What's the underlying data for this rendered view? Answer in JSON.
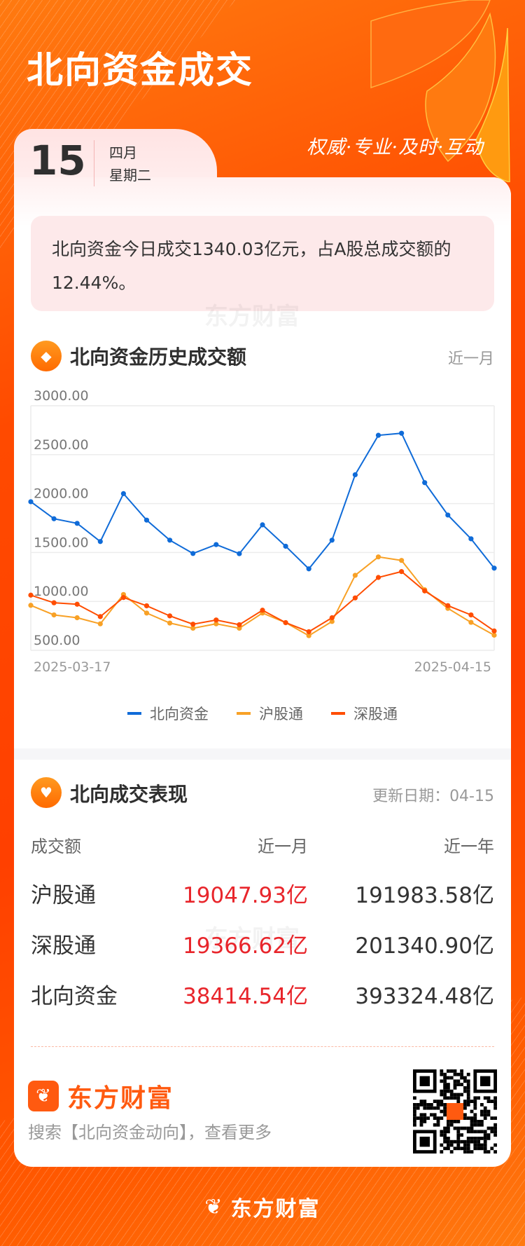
{
  "header": {
    "title": "北向资金成交",
    "slogan": "权威·专业·及时·互动"
  },
  "date": {
    "day": "15",
    "month": "四月",
    "weekday": "星期二"
  },
  "summary": "北向资金今日成交1340.03亿元，占A股总成交额的12.44%。",
  "watermark": "东方财富",
  "history_section": {
    "icon": "coin-icon",
    "title": "北向资金历史成交额",
    "range": "近一月"
  },
  "chart_data": {
    "type": "line",
    "title": "",
    "xlabel": "",
    "ylabel": "",
    "ylim": [
      500,
      3000
    ],
    "yticks": [
      "3000.00",
      "2500.00",
      "2000.00",
      "1500.00",
      "1000.00",
      "500.00"
    ],
    "grid": true,
    "legend": "bottom",
    "x": [
      "2025-03-17",
      "2025-03-18",
      "2025-03-19",
      "2025-03-20",
      "2025-03-21",
      "2025-03-24",
      "2025-03-25",
      "2025-03-26",
      "2025-03-27",
      "2025-03-28",
      "2025-03-31",
      "2025-04-01",
      "2025-04-02",
      "2025-04-03",
      "2025-04-07",
      "2025-04-08",
      "2025-04-09",
      "2025-04-10",
      "2025-04-11",
      "2025-04-14",
      "2025-04-15"
    ],
    "xtick_labels": [
      "2025-03-17",
      "2025-04-15"
    ],
    "series": [
      {
        "name": "北向资金",
        "color": "#0f6bd8",
        "values": [
          2019,
          1845,
          1798,
          1612,
          2102,
          1831,
          1626,
          1490,
          1581,
          1488,
          1783,
          1564,
          1333,
          1626,
          2295,
          2698,
          2719,
          2214,
          1883,
          1640,
          1340.03
        ]
      },
      {
        "name": "沪股通",
        "color": "#f8a126",
        "values": [
          960,
          862,
          833,
          771,
          1071,
          881,
          779,
          726,
          771,
          726,
          881,
          783,
          650,
          795,
          1267,
          1455,
          1419,
          1119,
          929,
          786,
          655
        ]
      },
      {
        "name": "深股通",
        "color": "#ff4d00",
        "values": [
          1064,
          986,
          971,
          845,
          1040,
          955,
          852,
          767,
          810,
          762,
          910,
          783,
          690,
          833,
          1036,
          1245,
          1305,
          1107,
          957,
          862,
          698
        ]
      }
    ]
  },
  "performance_section": {
    "icon": "handshake-icon",
    "title": "北向成交表现",
    "update_label": "更新日期：04-15",
    "columns": [
      "成交额",
      "近一月",
      "近一年"
    ],
    "rows": [
      {
        "label": "沪股通",
        "month": "19047.93亿",
        "year": "191983.58亿"
      },
      {
        "label": "深股通",
        "month": "19366.62亿",
        "year": "201340.90亿"
      },
      {
        "label": "北向资金",
        "month": "38414.54亿",
        "year": "393324.48亿"
      }
    ]
  },
  "footer": {
    "brand": "东方财富",
    "search_hint": "搜索【北向资金动向】，查看更多",
    "bottom_brand": "东方财富"
  },
  "colors": {
    "brand": "#ff4a00",
    "up": "#e8252b"
  }
}
